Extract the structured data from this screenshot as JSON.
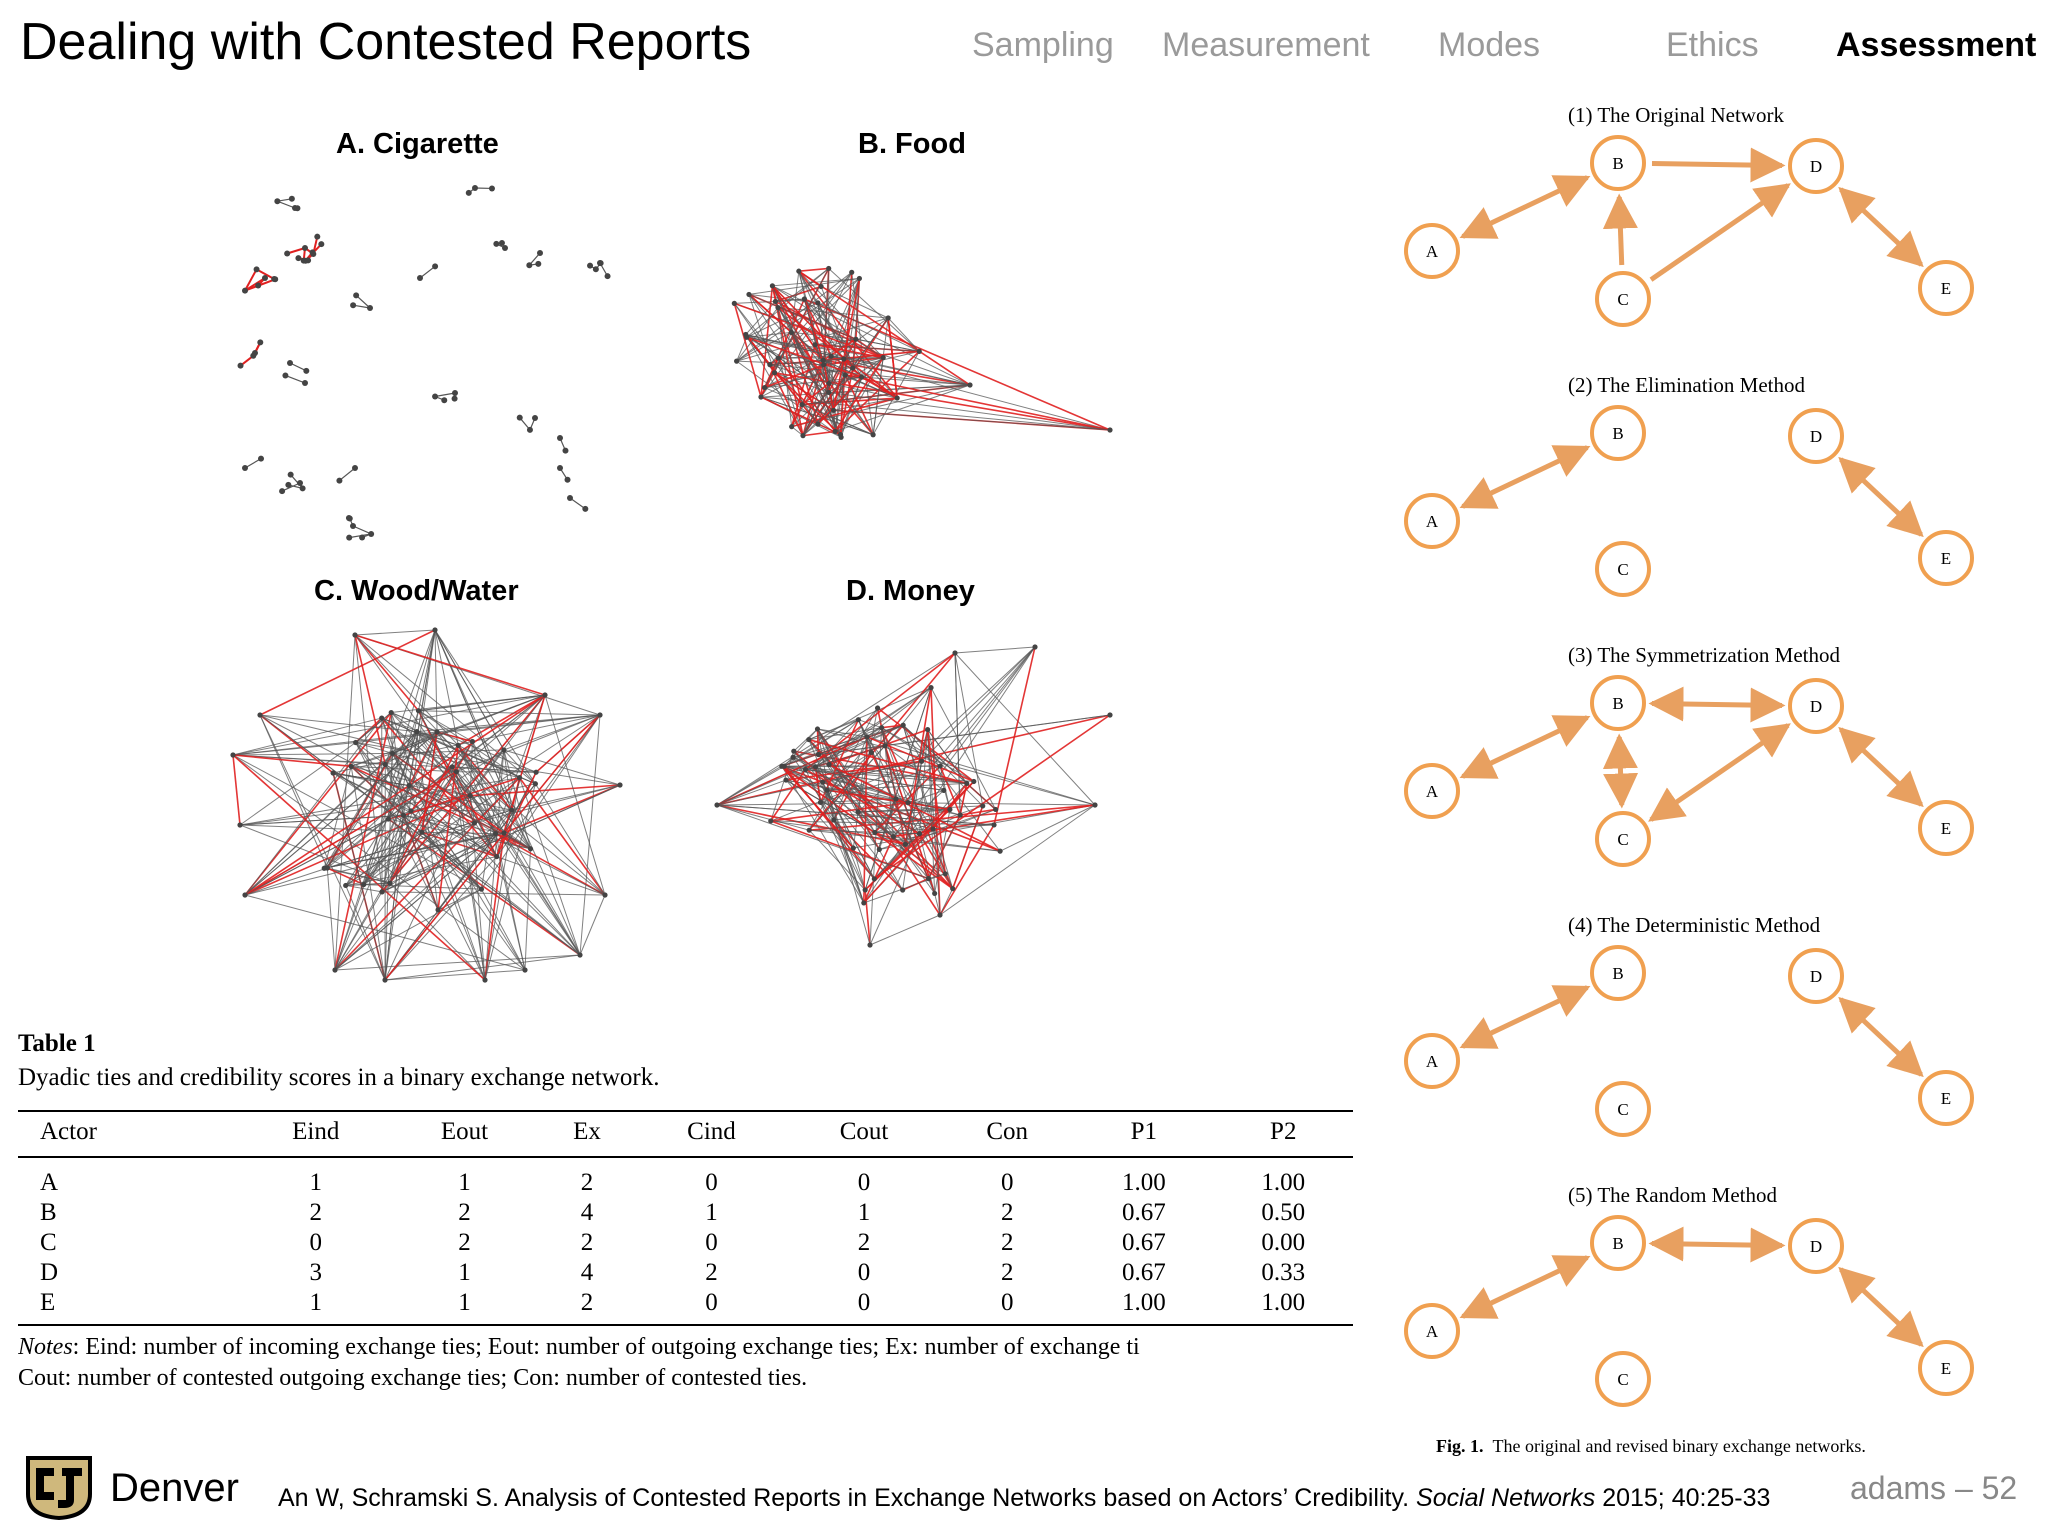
{
  "header": {
    "title": "Dealing with Contested Reports",
    "tabs": [
      {
        "label": "Sampling",
        "active": false
      },
      {
        "label": "Measurement",
        "active": false
      },
      {
        "label": "Modes",
        "active": false
      },
      {
        "label": "Ethics",
        "active": false
      },
      {
        "label": "Assessment",
        "active": true
      }
    ]
  },
  "network_panels": [
    {
      "title": "A. Cigarette"
    },
    {
      "title": "B. Food"
    },
    {
      "title": "C. Wood/Water"
    },
    {
      "title": "D. Money"
    }
  ],
  "table": {
    "label": "Table 1",
    "caption": "Dyadic ties and credibility scores in a binary exchange network.",
    "columns": [
      "Actor",
      "Eind",
      "Eout",
      "Ex",
      "Cind",
      "Cout",
      "Con",
      "P1",
      "P2"
    ],
    "rows": [
      [
        "A",
        "1",
        "1",
        "2",
        "0",
        "0",
        "0",
        "1.00",
        "1.00"
      ],
      [
        "B",
        "2",
        "2",
        "4",
        "1",
        "1",
        "2",
        "0.67",
        "0.50"
      ],
      [
        "C",
        "0",
        "2",
        "2",
        "0",
        "2",
        "2",
        "0.67",
        "0.00"
      ],
      [
        "D",
        "3",
        "1",
        "4",
        "2",
        "0",
        "2",
        "0.67",
        "0.33"
      ],
      [
        "E",
        "1",
        "1",
        "2",
        "0",
        "0",
        "0",
        "1.00",
        "1.00"
      ]
    ],
    "notes_label": "Notes",
    "notes_line1": ": Eind: number of incoming exchange ties; Eout: number of outgoing exchange ties; Ex: number of exchange ti",
    "notes_line2": "Cout: number of contested outgoing exchange ties; Con: number of contested ties."
  },
  "figure": {
    "methods": [
      {
        "title": "(1) The Original Network",
        "edges": [
          [
            "B",
            "A",
            "both"
          ],
          [
            "B",
            "D",
            "to"
          ],
          [
            "C",
            "B",
            "to"
          ],
          [
            "C",
            "D",
            "to"
          ],
          [
            "D",
            "E",
            "both"
          ]
        ]
      },
      {
        "title": "(2) The Elimination Method",
        "edges": [
          [
            "B",
            "A",
            "both"
          ],
          [
            "D",
            "E",
            "both"
          ]
        ]
      },
      {
        "title": "(3) The Symmetrization Method",
        "edges": [
          [
            "B",
            "A",
            "both"
          ],
          [
            "B",
            "D",
            "both"
          ],
          [
            "B",
            "C",
            "both"
          ],
          [
            "C",
            "D",
            "both"
          ],
          [
            "D",
            "E",
            "both"
          ]
        ]
      },
      {
        "title": "(4) The Deterministic Method",
        "edges": [
          [
            "B",
            "A",
            "both"
          ],
          [
            "D",
            "E",
            "both"
          ]
        ]
      },
      {
        "title": "(5) The Random Method",
        "edges": [
          [
            "B",
            "A",
            "both"
          ],
          [
            "B",
            "D",
            "both"
          ],
          [
            "D",
            "E",
            "both"
          ]
        ]
      }
    ],
    "node_labels": [
      "A",
      "B",
      "C",
      "D",
      "E"
    ],
    "node_color": "#f0a050",
    "edge_color": "#e8a060",
    "caption_label": "Fig. 1.",
    "caption_text": "The original and revised binary exchange networks."
  },
  "footer": {
    "brand": "Denver",
    "citation_main": "An W, Schramski S. Analysis of Contested Reports in Exchange Networks based on Actors’ Credibility. ",
    "citation_journal": "Social Networks",
    "citation_tail": " 2015; 40:25-33",
    "page_label": "adams – 52",
    "logo_icon": "cu-logo-icon"
  },
  "colors": {
    "tab_inactive": "#9a9a9a",
    "contested_edge": "#e02020",
    "normal_edge": "#555555",
    "node": "#444444"
  }
}
